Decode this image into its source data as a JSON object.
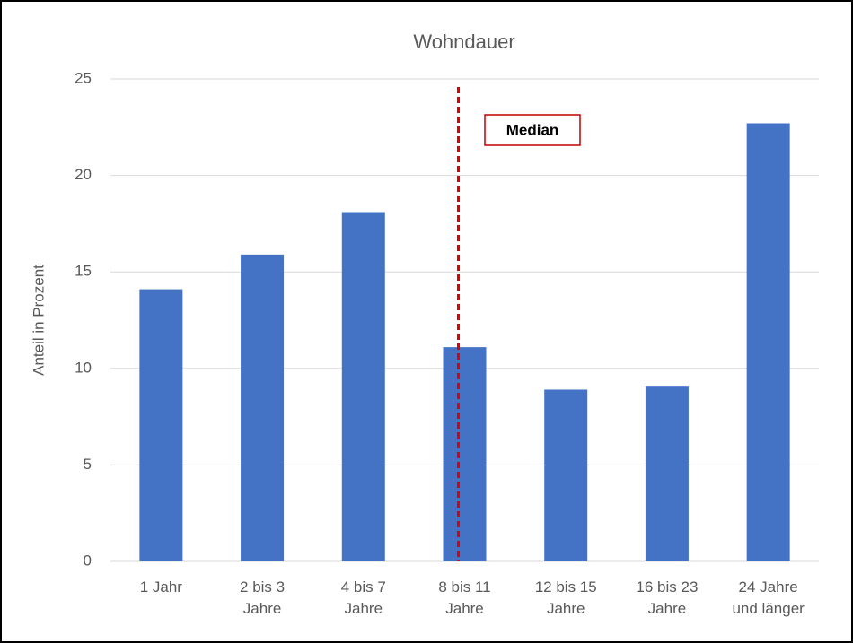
{
  "chart_data": {
    "type": "bar",
    "title": "Wohndauer",
    "y_label": "Anteil in Prozent",
    "categories": [
      "1 Jahr",
      "2 bis 3\nJahre",
      "4 bis 7\nJahre",
      "8 bis 11\nJahre",
      "12 bis 15\nJahre",
      "16 bis 23\nJahre",
      "24 Jahre\nund länger"
    ],
    "values": [
      14.1,
      15.9,
      18.1,
      11.1,
      8.9,
      9.1,
      22.7
    ],
    "color": "#4472c4",
    "ylim": [
      0,
      25
    ],
    "yticks": [
      0,
      5,
      10,
      15,
      20,
      25
    ],
    "grid": true,
    "annotation": "Median"
  }
}
